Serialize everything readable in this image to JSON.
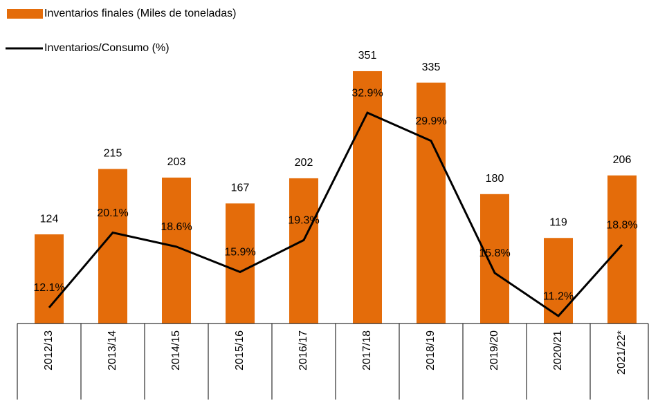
{
  "chart_data": {
    "type": "bar-line",
    "categories": [
      "2012/13",
      "2013/14",
      "2014/15",
      "2015/16",
      "2016/17",
      "2017/18",
      "2018/19",
      "2019/20",
      "2020/21",
      "2021/22*"
    ],
    "series": [
      {
        "name": "Inventarios finales (Miles de toneladas)",
        "color": "#e46c0a",
        "type": "bar",
        "values": [
          124,
          215,
          203,
          167,
          202,
          351,
          335,
          180,
          119,
          206
        ]
      },
      {
        "name": "Inventarios/Consumo (%)",
        "color": "#000000",
        "type": "line",
        "axis": "y2",
        "values": [
          12.1,
          20.1,
          18.6,
          15.9,
          19.3,
          32.9,
          29.9,
          15.8,
          11.2,
          18.8
        ],
        "value_labels": [
          "12.1%",
          "20.1%",
          "18.6%",
          "15.9%",
          "19.3%",
          "32.9%",
          "29.9%",
          "15.8%",
          "11.2%",
          "18.8%"
        ]
      }
    ],
    "ylim": [
      0,
      400
    ],
    "y2lim": [
      10.4,
      41.1
    ],
    "legend": "top-left"
  }
}
